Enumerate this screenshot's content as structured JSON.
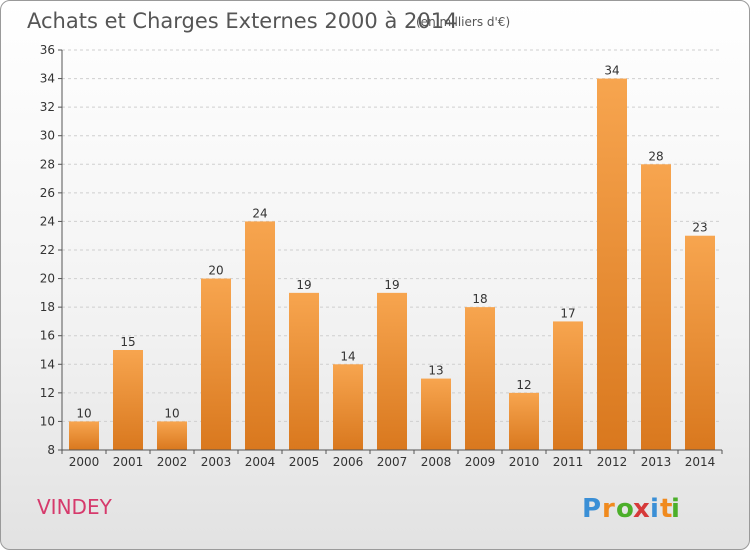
{
  "chart_data": {
    "type": "bar",
    "title": "Achats et Charges Externes 2000 à 2014",
    "subtitle": "(en milliers d'€)",
    "categories": [
      "2000",
      "2001",
      "2002",
      "2003",
      "2004",
      "2005",
      "2006",
      "2007",
      "2008",
      "2009",
      "2010",
      "2011",
      "2012",
      "2013",
      "2014"
    ],
    "values": [
      10,
      15,
      10,
      20,
      24,
      19,
      14,
      19,
      13,
      18,
      12,
      17,
      34,
      28,
      23
    ],
    "ylim": [
      8,
      36
    ],
    "yticks": [
      8,
      10,
      12,
      14,
      16,
      18,
      20,
      22,
      24,
      26,
      28,
      30,
      32,
      34,
      36
    ],
    "grid": true,
    "xlabel": "",
    "ylabel": "",
    "bar_color_top": "#f7a54f",
    "bar_color_bottom": "#d9781e"
  },
  "footer": {
    "commune": "VINDEY",
    "commune_color": "#d63a6c",
    "logo_letters": [
      "P",
      "r",
      "o",
      "x",
      "i",
      "t",
      "i"
    ],
    "logo_colors": [
      "#3a8fd6",
      "#f08a1e",
      "#4caf2a",
      "#d63a3a",
      "#3a8fd6",
      "#f08a1e",
      "#4caf2a"
    ]
  }
}
